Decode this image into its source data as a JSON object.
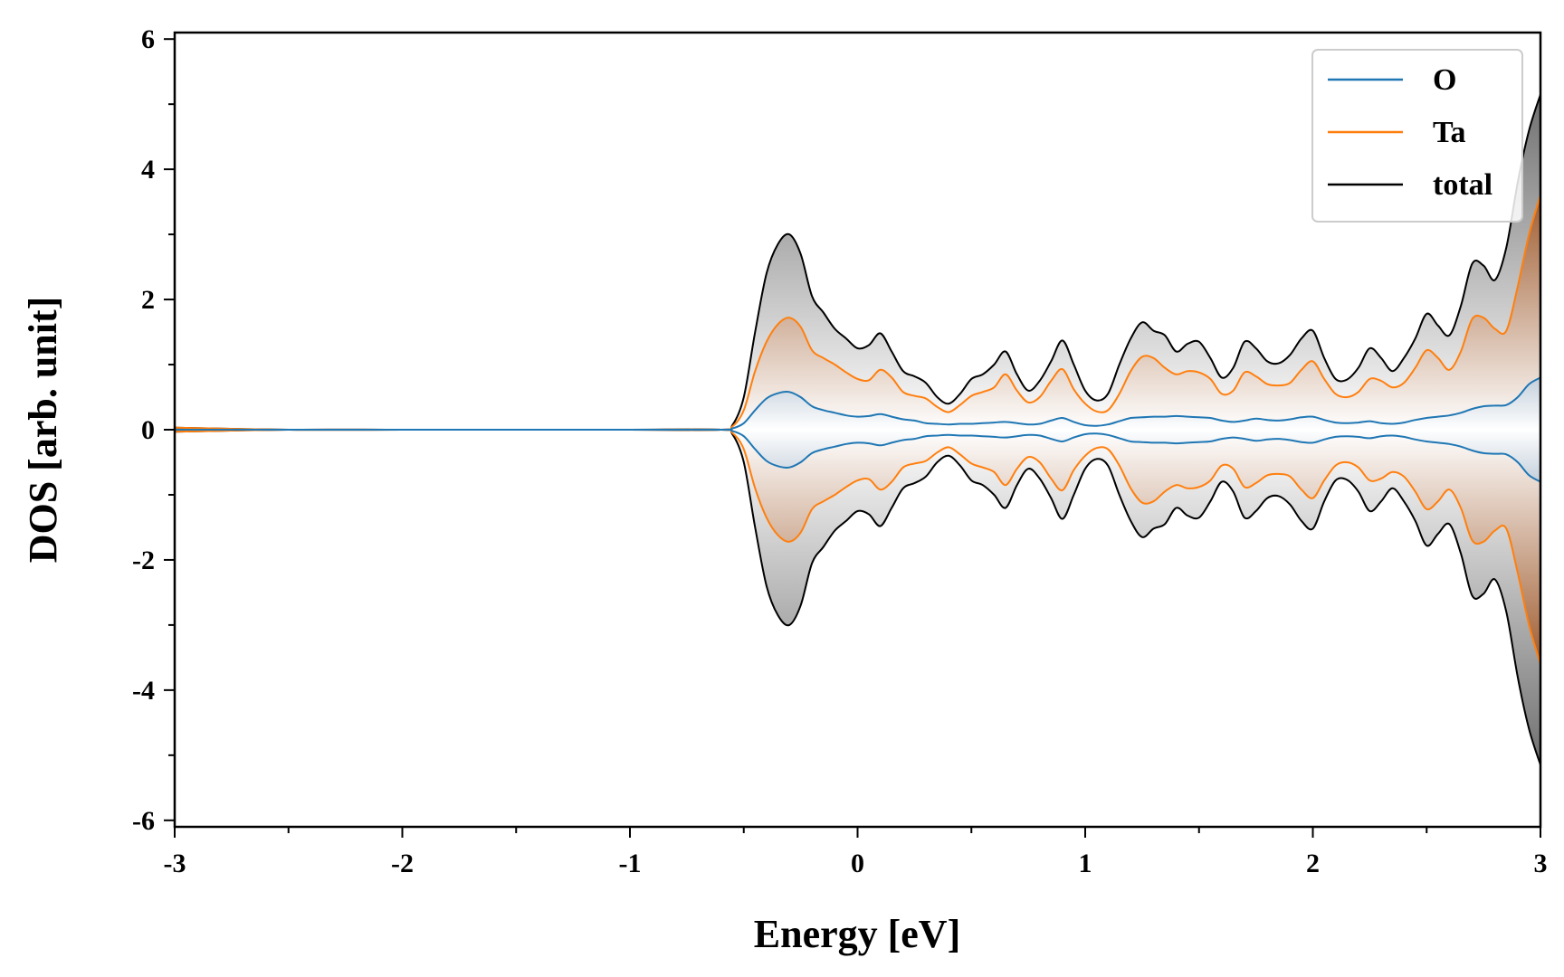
{
  "chart_data": {
    "type": "line",
    "title": "",
    "xlabel": "Energy [eV]",
    "ylabel": "DOS [arb. unit]",
    "xlim": [
      -3,
      3
    ],
    "ylim": [
      -6.1,
      6.1
    ],
    "xticks": [
      -3,
      -2,
      -1,
      0,
      1,
      2,
      3
    ],
    "yticks": [
      -6,
      -4,
      -2,
      0,
      2,
      4,
      6
    ],
    "x_minor_step": 0.5,
    "y_minor_step": 1,
    "grid": false,
    "legend_position": "top-right",
    "mirrored_spin_down": true,
    "x": [
      -3.0,
      -2.5,
      -2.0,
      -1.5,
      -1.0,
      -0.6,
      -0.55,
      -0.5,
      -0.45,
      -0.4,
      -0.35,
      -0.3,
      -0.25,
      -0.2,
      -0.15,
      -0.1,
      -0.05,
      0.0,
      0.05,
      0.1,
      0.15,
      0.2,
      0.25,
      0.3,
      0.35,
      0.4,
      0.45,
      0.5,
      0.55,
      0.6,
      0.65,
      0.7,
      0.75,
      0.8,
      0.85,
      0.9,
      0.95,
      1.0,
      1.05,
      1.1,
      1.15,
      1.2,
      1.25,
      1.3,
      1.35,
      1.4,
      1.45,
      1.5,
      1.55,
      1.6,
      1.65,
      1.7,
      1.75,
      1.8,
      1.85,
      1.9,
      1.95,
      2.0,
      2.05,
      2.1,
      2.15,
      2.2,
      2.25,
      2.3,
      2.35,
      2.4,
      2.45,
      2.5,
      2.55,
      2.6,
      2.65,
      2.7,
      2.75,
      2.8,
      2.85,
      2.9,
      2.95,
      3.0
    ],
    "series": [
      {
        "name": "O",
        "color": "#1f77b4",
        "values": [
          0.0,
          0.0,
          0.0,
          0.0,
          0.0,
          0.0,
          0.02,
          0.1,
          0.3,
          0.48,
          0.56,
          0.58,
          0.5,
          0.36,
          0.3,
          0.26,
          0.22,
          0.2,
          0.21,
          0.24,
          0.2,
          0.16,
          0.14,
          0.1,
          0.09,
          0.08,
          0.09,
          0.09,
          0.1,
          0.11,
          0.12,
          0.1,
          0.08,
          0.09,
          0.14,
          0.18,
          0.12,
          0.07,
          0.06,
          0.08,
          0.13,
          0.18,
          0.19,
          0.2,
          0.2,
          0.21,
          0.2,
          0.19,
          0.18,
          0.14,
          0.12,
          0.14,
          0.17,
          0.15,
          0.14,
          0.16,
          0.19,
          0.2,
          0.15,
          0.11,
          0.1,
          0.11,
          0.13,
          0.1,
          0.09,
          0.11,
          0.15,
          0.18,
          0.2,
          0.22,
          0.26,
          0.32,
          0.36,
          0.37,
          0.38,
          0.5,
          0.7,
          0.8
        ]
      },
      {
        "name": "Ta",
        "color": "#ff7f0e",
        "values": [
          0.03,
          0.0,
          0.0,
          0.0,
          0.0,
          0.0,
          0.05,
          0.3,
          0.9,
          1.35,
          1.62,
          1.72,
          1.58,
          1.22,
          1.1,
          1.0,
          0.88,
          0.78,
          0.76,
          0.92,
          0.8,
          0.58,
          0.52,
          0.48,
          0.35,
          0.27,
          0.38,
          0.52,
          0.58,
          0.65,
          0.85,
          0.6,
          0.42,
          0.5,
          0.75,
          0.93,
          0.62,
          0.4,
          0.28,
          0.3,
          0.55,
          0.9,
          1.12,
          1.1,
          0.95,
          0.85,
          0.9,
          0.88,
          0.78,
          0.55,
          0.6,
          0.88,
          0.82,
          0.7,
          0.68,
          0.72,
          0.92,
          1.05,
          0.78,
          0.55,
          0.5,
          0.58,
          0.78,
          0.75,
          0.65,
          0.72,
          0.95,
          1.22,
          1.1,
          0.92,
          1.2,
          1.7,
          1.72,
          1.55,
          1.52,
          2.2,
          3.0,
          3.6
        ]
      },
      {
        "name": "total",
        "color": "#000000",
        "values": [
          0.03,
          0.0,
          0.0,
          0.0,
          0.0,
          0.0,
          0.07,
          0.5,
          1.5,
          2.4,
          2.85,
          3.0,
          2.7,
          2.05,
          1.8,
          1.55,
          1.4,
          1.25,
          1.3,
          1.48,
          1.2,
          0.9,
          0.82,
          0.72,
          0.5,
          0.4,
          0.55,
          0.78,
          0.85,
          1.0,
          1.2,
          0.85,
          0.6,
          0.75,
          1.05,
          1.37,
          1.0,
          0.6,
          0.45,
          0.55,
          1.0,
          1.4,
          1.65,
          1.52,
          1.45,
          1.2,
          1.32,
          1.35,
          1.1,
          0.8,
          0.95,
          1.35,
          1.25,
          1.05,
          1.02,
          1.15,
          1.4,
          1.52,
          1.1,
          0.78,
          0.77,
          0.95,
          1.25,
          1.1,
          0.9,
          1.1,
          1.4,
          1.78,
          1.6,
          1.45,
          1.9,
          2.55,
          2.52,
          2.3,
          2.8,
          3.8,
          4.6,
          5.15
        ]
      }
    ]
  }
}
